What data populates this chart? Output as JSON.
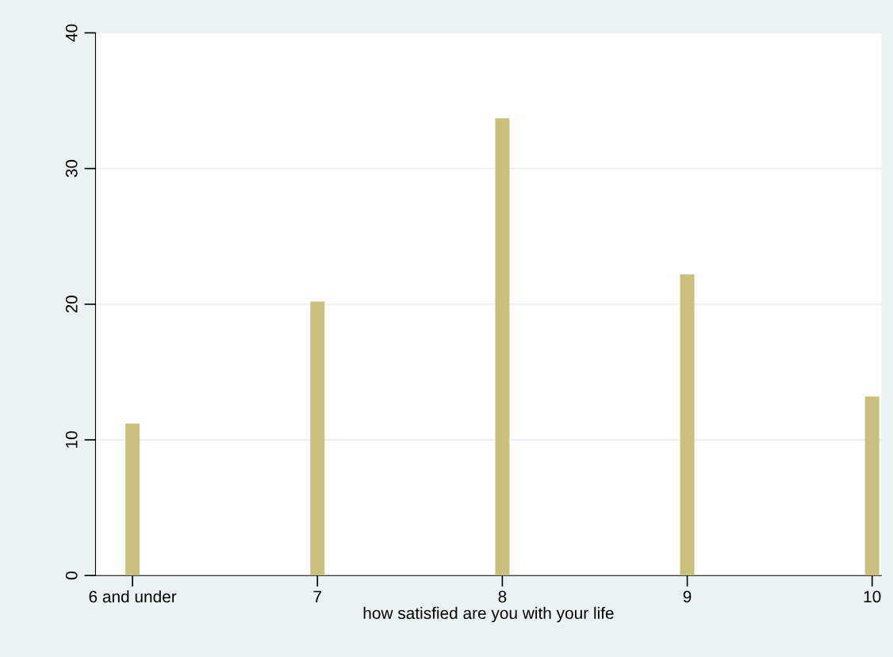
{
  "chart_data": {
    "type": "bar",
    "xlabel": "how satisfied are you with your life",
    "categories": [
      "6 and under",
      "7",
      "8",
      "9",
      "10"
    ],
    "values": [
      11.2,
      20.2,
      33.7,
      22.2,
      13.2
    ],
    "color": "#c8c07c",
    "ylim": [
      0,
      40
    ],
    "yticks": [
      0,
      10,
      20,
      30,
      40
    ],
    "grid": "y"
  }
}
